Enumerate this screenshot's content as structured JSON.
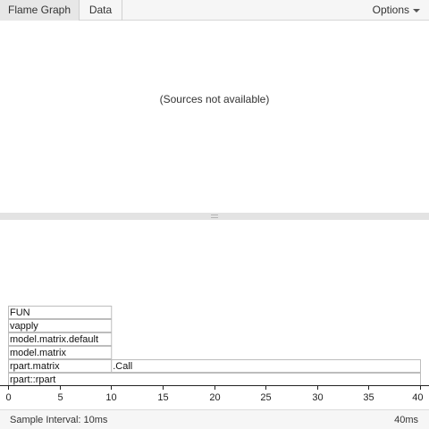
{
  "tabs": [
    {
      "label": "Flame Graph",
      "active": true
    },
    {
      "label": "Data",
      "active": false
    }
  ],
  "options_label": "Options",
  "source_message": "(Sources not available)",
  "chart_data": {
    "type": "flamegraph",
    "xlim": [
      0,
      40
    ],
    "x_ticks": [
      0,
      5,
      10,
      15,
      20,
      25,
      30,
      35,
      40
    ],
    "frames": [
      {
        "label": "rpart::rpart",
        "depth": 0,
        "start": 0,
        "end": 40
      },
      {
        "label": "rpart.matrix",
        "depth": 1,
        "start": 0,
        "end": 10
      },
      {
        "label": ".Call",
        "depth": 1,
        "start": 10,
        "end": 40
      },
      {
        "label": "model.matrix",
        "depth": 2,
        "start": 0,
        "end": 10
      },
      {
        "label": "model.matrix.default",
        "depth": 3,
        "start": 0,
        "end": 10
      },
      {
        "label": "vapply",
        "depth": 4,
        "start": 0,
        "end": 10
      },
      {
        "label": "FUN",
        "depth": 5,
        "start": 0,
        "end": 10
      }
    ]
  },
  "status": {
    "left": "Sample Interval: 10ms",
    "right": "40ms"
  },
  "colors": {
    "frame_fill": "#ffffff",
    "frame_stroke": "#bdbdbd",
    "toolbar_bg": "#f6f6f6",
    "splitter_bg": "#e3e3e3"
  }
}
